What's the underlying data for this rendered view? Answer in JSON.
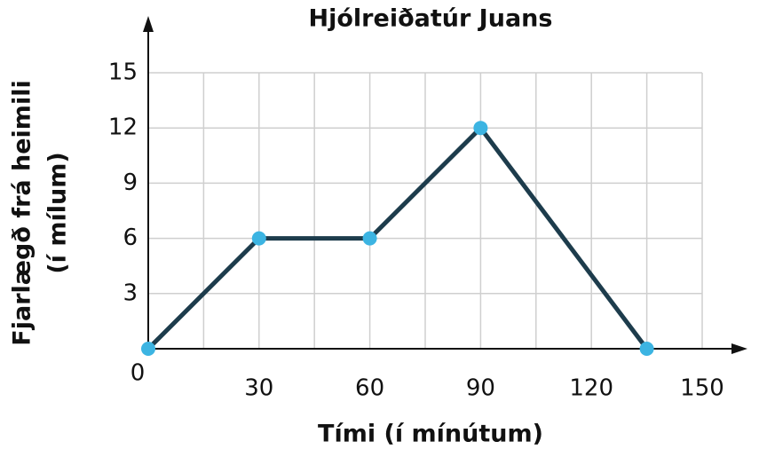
{
  "chart_data": {
    "type": "line",
    "title": "Hjólreiðatúr Juans",
    "xlabel": "Tími (í mínútum)",
    "ylabel": [
      "Fjarlægð frá heimili",
      "(í mílum)"
    ],
    "x": [
      0,
      30,
      60,
      90,
      135
    ],
    "series": [
      {
        "color": "#1d3c4c",
        "marker_color": "#3cb4e2",
        "values": [
          0,
          6,
          6,
          12,
          0
        ]
      }
    ],
    "xlim": [
      0,
      150
    ],
    "ylim": [
      0,
      15
    ],
    "xticks": [
      0,
      30,
      60,
      90,
      120,
      150
    ],
    "x_minor_ticks": [
      15,
      45,
      75,
      105,
      135
    ],
    "yticks": [
      3,
      6,
      9,
      12,
      15
    ],
    "grid": true
  }
}
